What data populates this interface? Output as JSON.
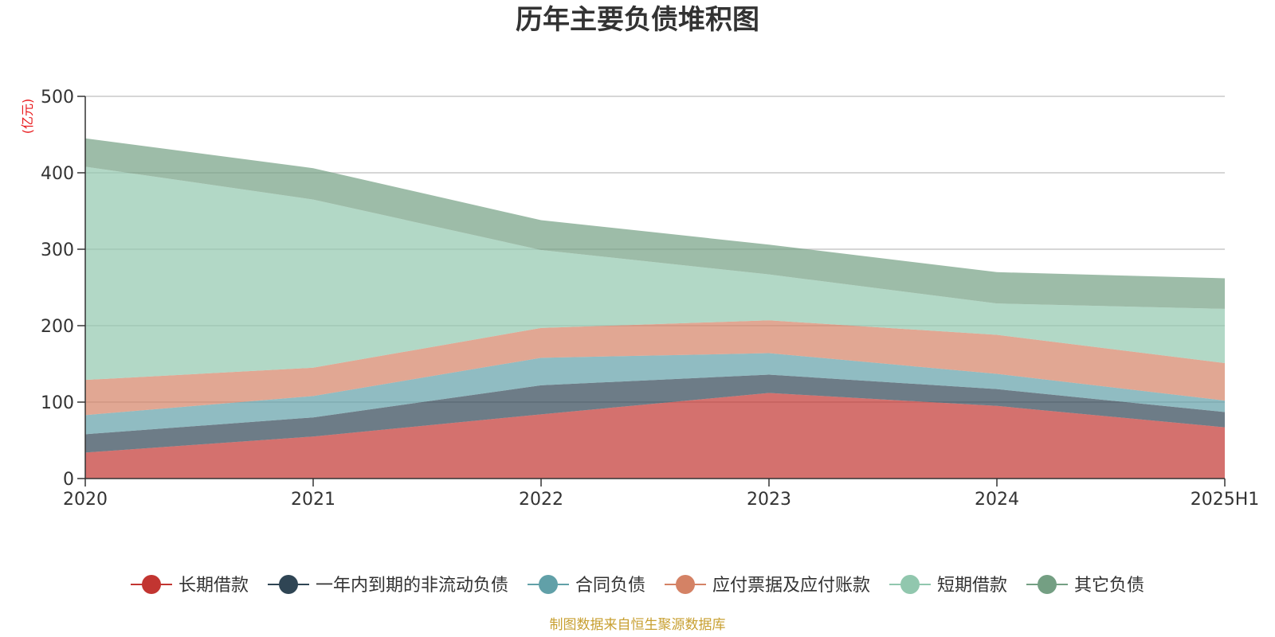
{
  "chart_data": {
    "type": "area",
    "stacked": true,
    "title": "历年主要负债堆积图",
    "unit": "(亿元)",
    "categories": [
      "2020",
      "2021",
      "2022",
      "2023",
      "2024",
      "2025H1"
    ],
    "ylim": [
      0,
      500
    ],
    "yticks": [
      0,
      100,
      200,
      300,
      400,
      500
    ],
    "grid": true,
    "legend_position": "bottom",
    "series": [
      {
        "name": "长期借款",
        "color": "#c23531",
        "values": [
          34,
          55,
          84,
          112,
          95,
          67
        ]
      },
      {
        "name": "一年内到期的非流动负债",
        "color": "#2f4554",
        "values": [
          24,
          25,
          38,
          24,
          22,
          20
        ]
      },
      {
        "name": "合同负债",
        "color": "#61a0a8",
        "values": [
          25,
          28,
          36,
          28,
          20,
          15
        ]
      },
      {
        "name": "应付票据及应付账款",
        "color": "#d48265",
        "values": [
          46,
          37,
          39,
          43,
          51,
          49
        ]
      },
      {
        "name": "短期借款",
        "color": "#91c7ae",
        "values": [
          279,
          220,
          102,
          60,
          41,
          71
        ]
      },
      {
        "name": "其它负债",
        "color": "#749f83",
        "values": [
          37,
          41,
          39,
          39,
          41,
          40
        ]
      }
    ],
    "source": "制图数据来自恒生聚源数据库"
  }
}
